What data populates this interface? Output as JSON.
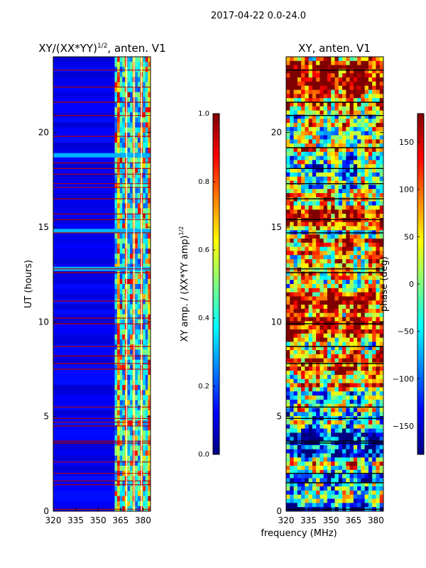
{
  "suptitle": "2017-04-22 0.0-24.0",
  "shared_xlabel": "frequency (MHz)",
  "colors": {
    "jet": [
      "#00007f",
      "#0000ff",
      "#0080ff",
      "#00ffff",
      "#80ff80",
      "#ffff00",
      "#ff8000",
      "#ff0000",
      "#7f0000"
    ],
    "flag_line": "#b40000",
    "frame": "#000000"
  },
  "chart_data": [
    {
      "type": "heatmap",
      "title_base": "XY/(XX*YY)",
      "title_exp": "1/2",
      "title_tail": ", anten. V1",
      "xlabel": "",
      "ylabel": "UT (hours)",
      "xlim": [
        320,
        385
      ],
      "ylim": [
        0,
        24
      ],
      "xticks": [
        320,
        335,
        350,
        365,
        380
      ],
      "yticks": [
        0,
        5,
        10,
        15,
        20
      ],
      "active_band_mhz": [
        361,
        385
      ],
      "flagged_hours": [
        0.1,
        1.4,
        1.6,
        2.0,
        2.6,
        3.6,
        3.7,
        4.5,
        4.7,
        4.9,
        5.5,
        7.5,
        7.8,
        8.2,
        8.7,
        9.9,
        10.2,
        11.1,
        12.6,
        12.8,
        14.7,
        15.4,
        15.7,
        16.5,
        17.1,
        17.3,
        17.8,
        18.1,
        18.4,
        19.8,
        20.9,
        21.6,
        22.4,
        23.3
      ],
      "rfi_events_hours": [
        12.8,
        14.8,
        18.8
      ],
      "colorbar": {
        "label_main": "XY amp. / (XX*YY amp)",
        "label_exp": "1/2",
        "range": [
          0.0,
          1.0
        ],
        "tick_labels": [
          "0.0",
          "0.2",
          "0.4",
          "0.6",
          "0.8",
          "1.0"
        ]
      }
    },
    {
      "type": "heatmap",
      "title": "XY, anten. V1",
      "xlabel": "frequency (MHz)",
      "ylabel": "",
      "xlim": [
        320,
        385
      ],
      "ylim": [
        0,
        24
      ],
      "xticks": [
        320,
        335,
        350,
        365,
        380
      ],
      "yticks": [
        0,
        5,
        10,
        15,
        20
      ],
      "flagged_hours": [
        0.1,
        1.5,
        2.0,
        3.6,
        3.7,
        4.9,
        5.5,
        7.8,
        8.7,
        9.9,
        12.6,
        12.8,
        14.7,
        15.4,
        16.5,
        17.3,
        18.1,
        19.2,
        20.9,
        21.6,
        23.3
      ],
      "colorbar": {
        "label": "phase (deg)",
        "range": [
          -180,
          180
        ],
        "tick_labels": [
          "−150",
          "−100",
          "−50",
          "0",
          "50",
          "100",
          "150"
        ],
        "tick_values": [
          -150,
          -100,
          -50,
          0,
          50,
          100,
          150
        ]
      }
    }
  ]
}
